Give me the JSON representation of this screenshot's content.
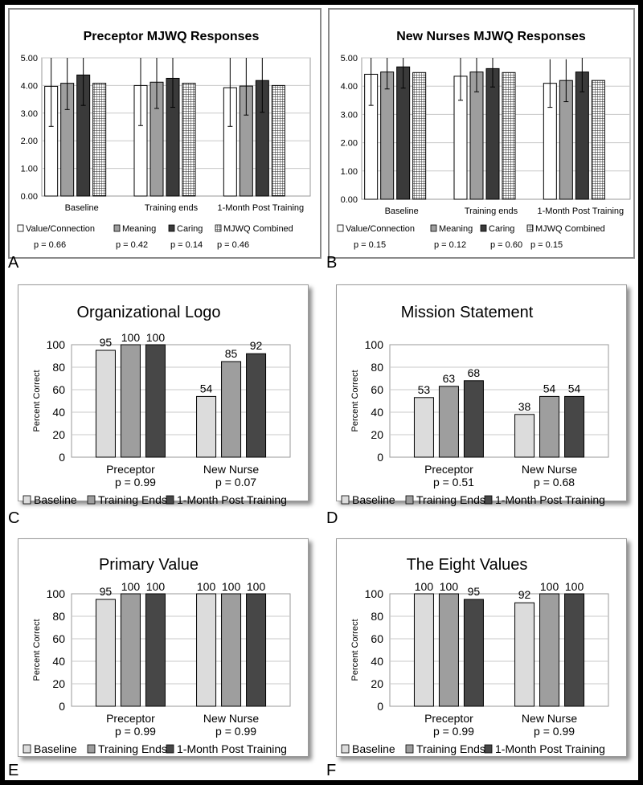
{
  "colors": {
    "black": "#000000",
    "baseline_light": "#dcdcdc",
    "training_gray": "#9e9e9e",
    "post_dark": "#474747",
    "caring_dark": "#3a3a3a",
    "white": "#ffffff",
    "grid": "#c8c8c8"
  },
  "chart_data": [
    {
      "id": "A",
      "type": "bar",
      "title": "Preceptor MJWQ Responses",
      "categories": [
        "Baseline",
        "Training ends",
        "1-Month Post Training"
      ],
      "ylim": [
        0,
        5
      ],
      "yticks": [
        "0.00",
        "1.00",
        "2.00",
        "3.00",
        "4.00",
        "5.00"
      ],
      "series": [
        {
          "name": "Value/Connection",
          "pvalue": "p = 0.66",
          "values": [
            3.97,
            4.0,
            3.92
          ],
          "err": [
            1.45,
            1.45,
            1.4
          ]
        },
        {
          "name": "Meaning",
          "pvalue": "p = 0.42",
          "values": [
            4.08,
            4.12,
            3.98
          ],
          "err": [
            0.95,
            0.95,
            1.05
          ]
        },
        {
          "name": "Caring",
          "pvalue": "p = 0.14",
          "values": [
            4.38,
            4.26,
            4.18
          ],
          "err": [
            1.1,
            1.05,
            1.15
          ]
        },
        {
          "name": "MJWQ Combined",
          "pvalue": "p = 0.46",
          "values": [
            4.08,
            4.08,
            4.0
          ],
          "err": [
            0,
            0,
            0
          ]
        }
      ],
      "grid": true,
      "legend": "bottom"
    },
    {
      "id": "B",
      "type": "bar",
      "title": "New Nurses MJWQ Responses",
      "categories": [
        "Baseline",
        "Training ends",
        "1-Month Post Training"
      ],
      "ylim": [
        0,
        5
      ],
      "yticks": [
        "0.00",
        "1.00",
        "2.00",
        "3.00",
        "4.00",
        "5.00"
      ],
      "series": [
        {
          "name": "Value/Connection",
          "pvalue": "p = 0.15",
          "values": [
            4.42,
            4.35,
            4.1
          ],
          "err": [
            1.1,
            0.85,
            0.85
          ]
        },
        {
          "name": "Meaning",
          "pvalue": "p = 0.12",
          "values": [
            4.5,
            4.5,
            4.2
          ],
          "err": [
            0.6,
            0.7,
            0.75
          ]
        },
        {
          "name": "Caring",
          "pvalue": "p = 0.60",
          "values": [
            4.68,
            4.62,
            4.5
          ],
          "err": [
            0.75,
            0.65,
            0.7
          ]
        },
        {
          "name": "MJWQ Combined",
          "pvalue": "p = 0.15",
          "values": [
            4.48,
            4.48,
            4.2
          ],
          "err": [
            0,
            0,
            0
          ]
        }
      ],
      "grid": true,
      "legend": "bottom"
    },
    {
      "id": "C",
      "type": "bar",
      "title": "Organizational Logo",
      "ylabel": "Percent Correct",
      "categories": [
        "Preceptor",
        "New Nurse"
      ],
      "pvalues": [
        "p = 0.99",
        "p = 0.07"
      ],
      "ylim": [
        0,
        100
      ],
      "yticks": [
        "0",
        "20",
        "40",
        "60",
        "80",
        "100"
      ],
      "series": [
        {
          "name": "Baseline",
          "values": [
            95,
            54
          ]
        },
        {
          "name": "Training Ends",
          "values": [
            100,
            85
          ]
        },
        {
          "name": "1-Month Post Training",
          "values": [
            100,
            92
          ]
        }
      ],
      "labels": [
        "95",
        "100",
        "100",
        "54",
        "85",
        "92"
      ],
      "grid": true,
      "legend": "bottom"
    },
    {
      "id": "D",
      "type": "bar",
      "title": "Mission Statement",
      "ylabel": "Percent Correct",
      "categories": [
        "Preceptor",
        "New Nurse"
      ],
      "pvalues": [
        "p = 0.51",
        "p = 0.68"
      ],
      "ylim": [
        0,
        100
      ],
      "yticks": [
        "0",
        "20",
        "40",
        "60",
        "80",
        "100"
      ],
      "series": [
        {
          "name": "Baseline",
          "values": [
            53,
            38
          ]
        },
        {
          "name": "Training Ends",
          "values": [
            63,
            54
          ]
        },
        {
          "name": "1-Month Post Training",
          "values": [
            68,
            54
          ]
        }
      ],
      "labels": [
        "53",
        "63",
        "68",
        "38",
        "54",
        "54"
      ],
      "grid": true,
      "legend": "bottom"
    },
    {
      "id": "E",
      "type": "bar",
      "title": "Primary Value",
      "ylabel": "Percent Correct",
      "categories": [
        "Preceptor",
        "New Nurse"
      ],
      "pvalues": [
        "p = 0.99",
        "p = 0.99"
      ],
      "ylim": [
        0,
        100
      ],
      "yticks": [
        "0",
        "20",
        "40",
        "60",
        "80",
        "100"
      ],
      "series": [
        {
          "name": "Baseline",
          "values": [
            95,
            100
          ]
        },
        {
          "name": "Training Ends",
          "values": [
            100,
            100
          ]
        },
        {
          "name": "1-Month Post Training",
          "values": [
            100,
            100
          ]
        }
      ],
      "labels": [
        "95",
        "100",
        "100",
        "100",
        "100",
        "100"
      ],
      "grid": true,
      "legend": "bottom"
    },
    {
      "id": "F",
      "type": "bar",
      "title": "The Eight Values",
      "ylabel": "Percent Correct",
      "categories": [
        "Preceptor",
        "New Nurse"
      ],
      "pvalues": [
        "p = 0.99",
        "p = 0.99"
      ],
      "ylim": [
        0,
        100
      ],
      "yticks": [
        "0",
        "20",
        "40",
        "60",
        "80",
        "100"
      ],
      "series": [
        {
          "name": "Baseline",
          "values": [
            100,
            92
          ]
        },
        {
          "name": "Training Ends",
          "values": [
            100,
            100
          ]
        },
        {
          "name": "1-Month Post Training",
          "values": [
            95,
            100
          ]
        }
      ],
      "labels": [
        "100",
        "100",
        "95",
        "92",
        "100",
        "100"
      ],
      "grid": true,
      "legend": "bottom"
    }
  ]
}
